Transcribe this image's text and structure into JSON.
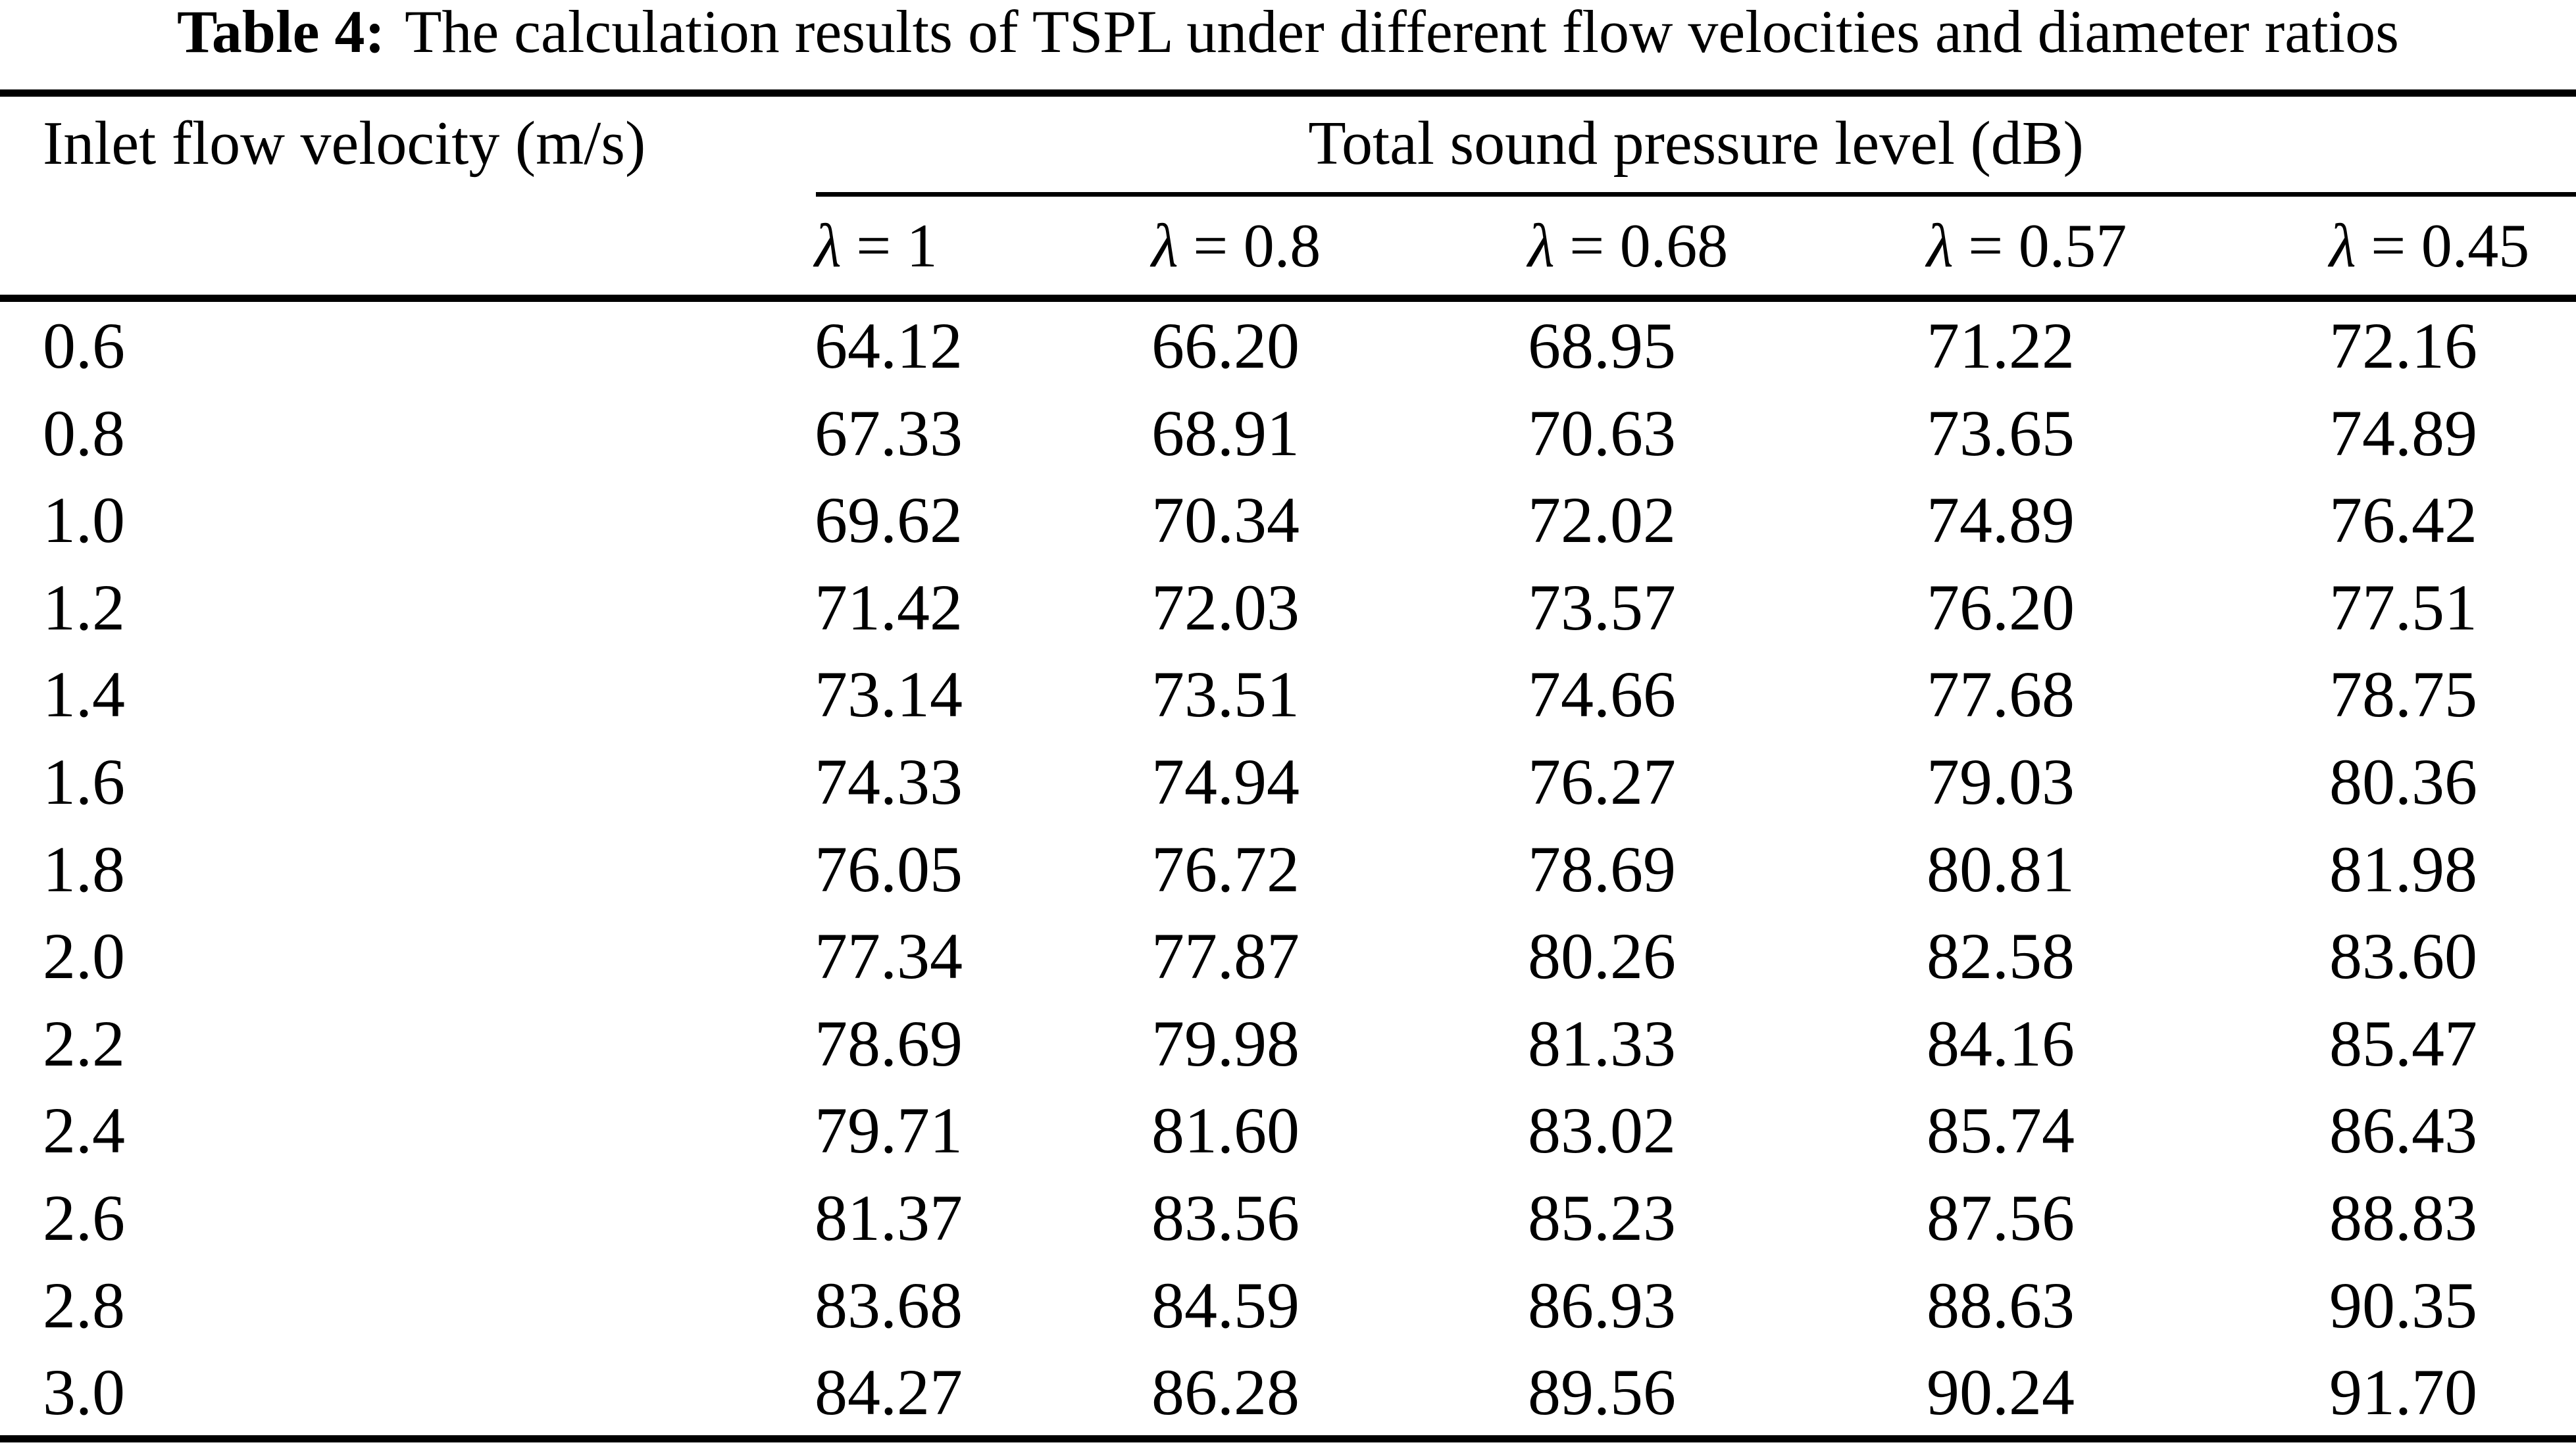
{
  "title": {
    "label": "Table 4:",
    "text": "The calculation results of TSPL under different flow velocities and diameter ratios"
  },
  "table": {
    "row_header": "Inlet flow velocity (m/s)",
    "group_header": "Total sound pressure level (dB)",
    "columns": [
      {
        "symbol": "λ",
        "eq": "= 1"
      },
      {
        "symbol": "λ",
        "eq": "= 0.8"
      },
      {
        "symbol": "λ",
        "eq": "= 0.68"
      },
      {
        "symbol": "λ",
        "eq": "= 0.57"
      },
      {
        "symbol": "λ",
        "eq": "= 0.45"
      }
    ],
    "rows": [
      {
        "velocity": "0.6",
        "values": [
          "64.12",
          "66.20",
          "68.95",
          "71.22",
          "72.16"
        ]
      },
      {
        "velocity": "0.8",
        "values": [
          "67.33",
          "68.91",
          "70.63",
          "73.65",
          "74.89"
        ]
      },
      {
        "velocity": "1.0",
        "values": [
          "69.62",
          "70.34",
          "72.02",
          "74.89",
          "76.42"
        ]
      },
      {
        "velocity": "1.2",
        "values": [
          "71.42",
          "72.03",
          "73.57",
          "76.20",
          "77.51"
        ]
      },
      {
        "velocity": "1.4",
        "values": [
          "73.14",
          "73.51",
          "74.66",
          "77.68",
          "78.75"
        ]
      },
      {
        "velocity": "1.6",
        "values": [
          "74.33",
          "74.94",
          "76.27",
          "79.03",
          "80.36"
        ]
      },
      {
        "velocity": "1.8",
        "values": [
          "76.05",
          "76.72",
          "78.69",
          "80.81",
          "81.98"
        ]
      },
      {
        "velocity": "2.0",
        "values": [
          "77.34",
          "77.87",
          "80.26",
          "82.58",
          "83.60"
        ]
      },
      {
        "velocity": "2.2",
        "values": [
          "78.69",
          "79.98",
          "81.33",
          "84.16",
          "85.47"
        ]
      },
      {
        "velocity": "2.4",
        "values": [
          "79.71",
          "81.60",
          "83.02",
          "85.74",
          "86.43"
        ]
      },
      {
        "velocity": "2.6",
        "values": [
          "81.37",
          "83.56",
          "85.23",
          "87.56",
          "88.83"
        ]
      },
      {
        "velocity": "2.8",
        "values": [
          "83.68",
          "84.59",
          "86.93",
          "88.63",
          "90.35"
        ]
      },
      {
        "velocity": "3.0",
        "values": [
          "84.27",
          "86.28",
          "89.56",
          "90.24",
          "91.70"
        ]
      }
    ]
  }
}
